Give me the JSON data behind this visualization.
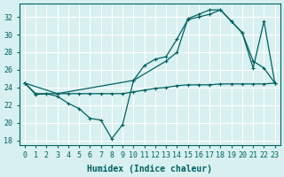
{
  "xlabel": "Humidex (Indice chaleur)",
  "bg_color": "#d8f0f0",
  "grid_color": "#b8d8d8",
  "line_color": "#006060",
  "xlim": [
    -0.5,
    23.5
  ],
  "ylim": [
    17.5,
    33.5
  ],
  "xticks": [
    0,
    1,
    2,
    3,
    4,
    5,
    6,
    7,
    8,
    9,
    10,
    11,
    12,
    13,
    14,
    15,
    16,
    17,
    18,
    19,
    20,
    21,
    22,
    23
  ],
  "yticks": [
    18,
    20,
    22,
    24,
    26,
    28,
    30,
    32
  ],
  "line1_x": [
    0,
    1,
    2,
    3,
    4,
    5,
    6,
    7,
    8,
    9,
    10,
    11,
    12,
    13,
    14,
    15,
    16,
    17,
    18,
    19,
    20,
    21,
    22,
    23
  ],
  "line1_y": [
    24.5,
    23.2,
    23.3,
    23.0,
    22.2,
    21.6,
    20.5,
    20.3,
    18.2,
    19.8,
    24.8,
    26.5,
    27.2,
    27.5,
    29.5,
    31.7,
    32.0,
    32.3,
    32.8,
    31.5,
    30.2,
    27.0,
    26.2,
    24.5
  ],
  "line2_x": [
    0,
    1,
    2,
    3,
    4,
    5,
    6,
    7,
    8,
    9,
    10,
    11,
    12,
    13,
    14,
    15,
    16,
    17,
    18,
    19,
    20,
    21,
    22,
    23
  ],
  "line2_y": [
    24.5,
    23.3,
    23.3,
    23.3,
    23.3,
    23.3,
    23.3,
    23.3,
    23.3,
    23.3,
    23.5,
    23.7,
    23.9,
    24.0,
    24.2,
    24.3,
    24.3,
    24.3,
    24.4,
    24.4,
    24.4,
    24.4,
    24.4,
    24.5
  ],
  "line3_x": [
    0,
    3,
    10,
    13,
    14,
    15,
    16,
    17,
    18,
    19,
    20,
    21,
    22,
    23
  ],
  "line3_y": [
    24.5,
    23.3,
    24.8,
    27.0,
    28.0,
    31.8,
    32.3,
    32.8,
    32.8,
    31.5,
    30.2,
    26.2,
    31.5,
    24.5
  ],
  "xlabel_fontsize": 7,
  "tick_fontsize": 6
}
